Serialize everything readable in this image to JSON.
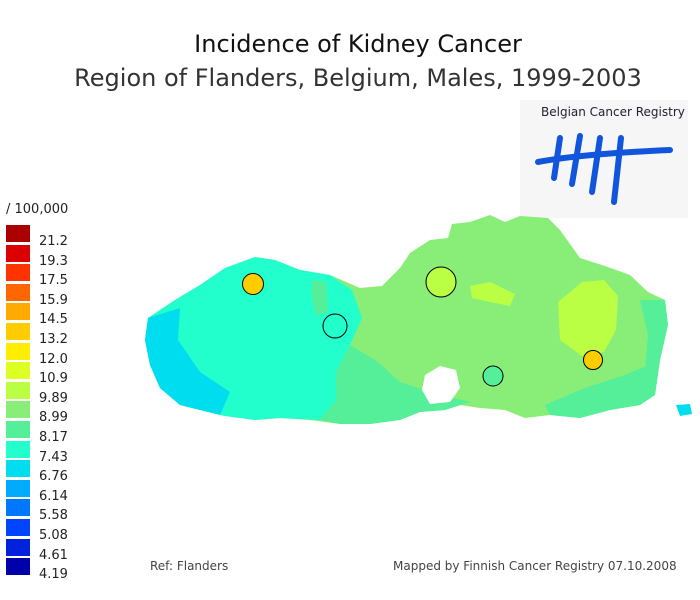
{
  "title": "Incidence of Kidney Cancer",
  "subtitle": "Region of Flanders, Belgium, Males, 1999-2003",
  "legend": {
    "unit": "/ 100,000",
    "items": [
      {
        "value": "21.2",
        "color": "#aa0000"
      },
      {
        "value": "19.3",
        "color": "#dd0000"
      },
      {
        "value": "17.5",
        "color": "#ff3300"
      },
      {
        "value": "15.9",
        "color": "#ff6600"
      },
      {
        "value": "14.5",
        "color": "#ffaa00"
      },
      {
        "value": "13.2",
        "color": "#ffcc00"
      },
      {
        "value": "12.0",
        "color": "#ffee00"
      },
      {
        "value": "10.9",
        "color": "#ddff22"
      },
      {
        "value": "9.89",
        "color": "#bbff44"
      },
      {
        "value": "8.99",
        "color": "#88ee77"
      },
      {
        "value": "8.17",
        "color": "#55ee99"
      },
      {
        "value": "7.43",
        "color": "#22ffcc"
      },
      {
        "value": "6.76",
        "color": "#00ddee"
      },
      {
        "value": "6.14",
        "color": "#00aaff"
      },
      {
        "value": "5.58",
        "color": "#0077ff"
      },
      {
        "value": "5.08",
        "color": "#0044ff"
      },
      {
        "value": "4.61",
        "color": "#0022dd"
      },
      {
        "value": "4.19",
        "color": "#0000aa"
      }
    ]
  },
  "logo": {
    "text": "Belgian Cancer Registry",
    "color": "#1155dd"
  },
  "reference": "Ref: Flanders",
  "credit": "Mapped by Finnish Cancer Registry 07.10.2008"
}
